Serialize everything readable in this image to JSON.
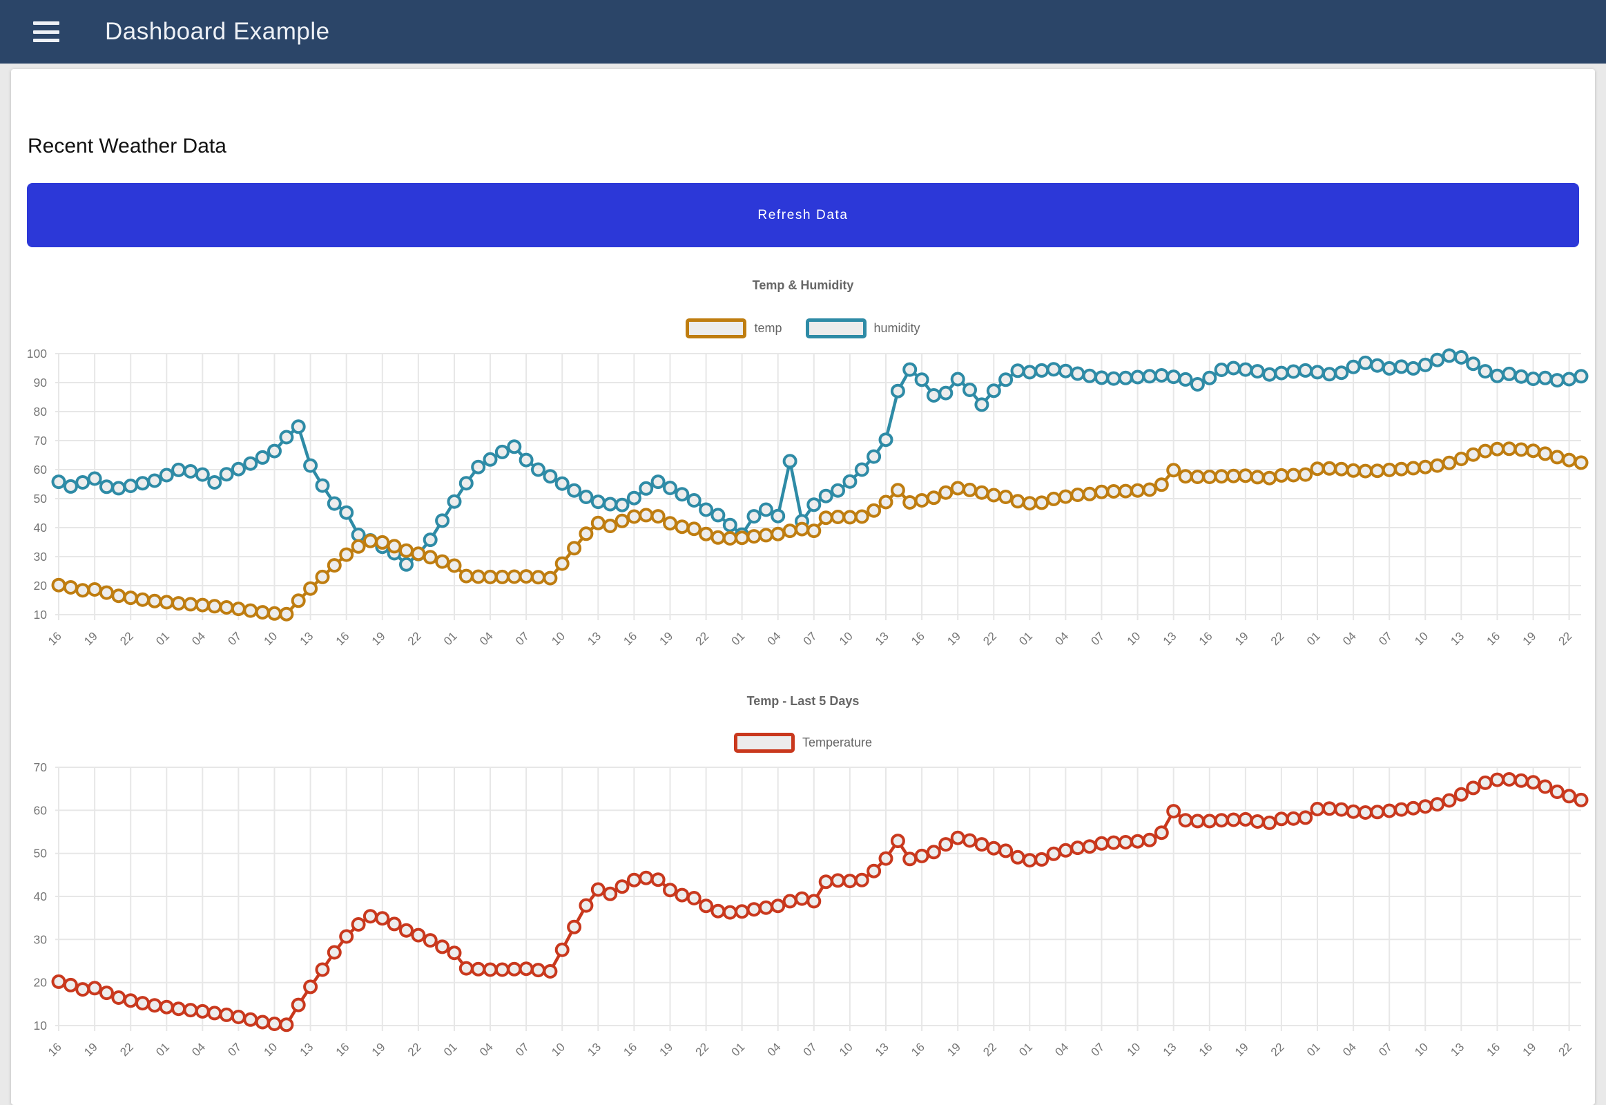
{
  "header": {
    "title": "Dashboard Example",
    "menu_icon": "hamburger-menu-icon"
  },
  "page": {
    "title": "Recent Weather Data"
  },
  "toolbar": {
    "refresh_label": "Refresh Data"
  },
  "colors": {
    "header_bg": "#2b4568",
    "button_bg": "#2c38d8",
    "temp": "#bf7d10",
    "humidity": "#2e8ba6",
    "temperature": "#c9381d",
    "grid": "#e7e7e7",
    "tick_text": "#757575"
  },
  "chart_data": [
    {
      "type": "line",
      "title": "Temp & Humidity",
      "xlabel": "",
      "ylabel": "",
      "ylim": [
        10,
        100
      ],
      "yticks": [
        100,
        90,
        80,
        70,
        60,
        50,
        40,
        30,
        20,
        10
      ],
      "grid": true,
      "legend_position": "top",
      "tick_labels": [
        "16",
        "19",
        "22",
        "01",
        "04",
        "07",
        "10",
        "13",
        "16",
        "19",
        "22",
        "01",
        "04",
        "07",
        "10",
        "13",
        "16",
        "19",
        "22",
        "01",
        "04",
        "07",
        "10",
        "13",
        "16",
        "19",
        "22",
        "01",
        "04",
        "07",
        "10",
        "13",
        "16",
        "19",
        "22",
        "01",
        "04",
        "07",
        "10",
        "13",
        "16",
        "19",
        "22"
      ],
      "series": [
        {
          "name": "temp",
          "color": "#bf7d10",
          "values": [
            20.2,
            19.4,
            18.4,
            18.7,
            17.6,
            16.5,
            15.8,
            15.2,
            14.7,
            14.3,
            13.9,
            13.6,
            13.3,
            12.9,
            12.5,
            12.0,
            11.4,
            10.8,
            10.4,
            10.2,
            14.8,
            19.0,
            23.0,
            27.0,
            30.7,
            33.5,
            35.4,
            34.9,
            33.6,
            32.1,
            31.0,
            29.8,
            28.3,
            26.9,
            23.3,
            23.1,
            23.0,
            23.0,
            23.1,
            23.2,
            22.9,
            22.6,
            27.6,
            32.9,
            37.9,
            41.6,
            40.6,
            42.3,
            43.8,
            44.3,
            43.9,
            41.5,
            40.3,
            39.6,
            37.8,
            36.6,
            36.3,
            36.5,
            37.0,
            37.4,
            37.8,
            38.9,
            39.5,
            38.9,
            43.4,
            43.7,
            43.6,
            43.8,
            45.9,
            48.8,
            52.9,
            48.7,
            49.4,
            50.3,
            52.1,
            53.6,
            53.0,
            52.1,
            51.2,
            50.6,
            49.1,
            48.4,
            48.6,
            49.9,
            50.7,
            51.3,
            51.6,
            52.3,
            52.5,
            52.6,
            52.8,
            53.1,
            54.8,
            59.8,
            57.7,
            57.5,
            57.5,
            57.7,
            57.8,
            57.9,
            57.4,
            57.1,
            58.0,
            58.1,
            58.3,
            60.3,
            60.4,
            60.2,
            59.7,
            59.5,
            59.6,
            59.9,
            60.2,
            60.5,
            60.9,
            61.4,
            62.3,
            63.7,
            65.2,
            66.4,
            67.1,
            67.2,
            66.9,
            66.5,
            65.5,
            64.3,
            63.3,
            62.4
          ]
        },
        {
          "name": "humidity",
          "color": "#2e8ba6",
          "values": [
            55.8,
            54.2,
            55.6,
            56.9,
            54.1,
            53.6,
            54.4,
            55.3,
            56.2,
            58.1,
            59.9,
            59.4,
            58.3,
            55.6,
            58.4,
            60.2,
            62.1,
            64.2,
            66.4,
            71.2,
            74.8,
            61.4,
            54.5,
            48.3,
            45.2,
            37.5,
            35.6,
            33.4,
            31.2,
            27.3,
            30.9,
            35.8,
            42.4,
            49.0,
            55.3,
            60.9,
            63.5,
            66.1,
            67.9,
            63.3,
            60.0,
            57.7,
            55.2,
            52.8,
            50.6,
            48.9,
            48.1,
            47.8,
            50.2,
            53.5,
            55.8,
            53.7,
            51.5,
            49.4,
            46.2,
            44.3,
            40.9,
            37.6,
            43.9,
            46.2,
            44.0,
            62.9,
            42.2,
            47.9,
            50.9,
            52.8,
            55.9,
            60.0,
            64.5,
            70.3,
            87.1,
            94.5,
            91.0,
            85.6,
            86.4,
            91.2,
            87.5,
            82.4,
            87.2,
            91.0,
            94.1,
            93.6,
            94.2,
            94.6,
            94.0,
            93.1,
            92.3,
            91.7,
            91.4,
            91.6,
            91.9,
            92.2,
            92.5,
            92.0,
            91.1,
            89.4,
            91.6,
            94.4,
            95.0,
            94.5,
            93.9,
            92.8,
            93.3,
            93.8,
            94.2,
            93.6,
            92.9,
            93.4,
            95.4,
            96.8,
            95.9,
            94.9,
            95.5,
            94.9,
            96.1,
            97.8,
            99.3,
            98.7,
            96.5,
            93.9,
            92.3,
            93.0,
            92.1,
            91.3,
            91.6,
            90.8,
            91.2,
            92.2
          ]
        }
      ]
    },
    {
      "type": "line",
      "title": "Temp - Last 5 Days",
      "xlabel": "",
      "ylabel": "",
      "ylim": [
        10,
        70
      ],
      "yticks": [
        70,
        60,
        50,
        40,
        30,
        20,
        10
      ],
      "grid": true,
      "legend_position": "top",
      "tick_labels": [
        "16",
        "19",
        "22",
        "01",
        "04",
        "07",
        "10",
        "13",
        "16",
        "19",
        "22",
        "01",
        "04",
        "07",
        "10",
        "13",
        "16",
        "19",
        "22",
        "01",
        "04",
        "07",
        "10",
        "13",
        "16",
        "19",
        "22",
        "01",
        "04",
        "07",
        "10",
        "13",
        "16",
        "19",
        "22",
        "01",
        "04",
        "07",
        "10",
        "13",
        "16",
        "19",
        "22"
      ],
      "series": [
        {
          "name": "Temperature",
          "color": "#c9381d",
          "values": [
            20.2,
            19.4,
            18.4,
            18.7,
            17.6,
            16.5,
            15.8,
            15.2,
            14.7,
            14.3,
            13.9,
            13.6,
            13.3,
            12.9,
            12.5,
            12.0,
            11.4,
            10.8,
            10.4,
            10.2,
            14.8,
            19.0,
            23.0,
            27.0,
            30.7,
            33.5,
            35.4,
            34.9,
            33.6,
            32.1,
            31.0,
            29.8,
            28.3,
            26.9,
            23.3,
            23.1,
            23.0,
            23.0,
            23.1,
            23.2,
            22.9,
            22.6,
            27.6,
            32.9,
            37.9,
            41.6,
            40.6,
            42.3,
            43.8,
            44.3,
            43.9,
            41.5,
            40.3,
            39.6,
            37.8,
            36.6,
            36.3,
            36.5,
            37.0,
            37.4,
            37.8,
            38.9,
            39.5,
            38.9,
            43.4,
            43.7,
            43.6,
            43.8,
            45.9,
            48.8,
            52.9,
            48.7,
            49.4,
            50.3,
            52.1,
            53.6,
            53.0,
            52.1,
            51.2,
            50.6,
            49.1,
            48.4,
            48.6,
            49.9,
            50.7,
            51.3,
            51.6,
            52.3,
            52.5,
            52.6,
            52.8,
            53.1,
            54.8,
            59.8,
            57.7,
            57.5,
            57.5,
            57.7,
            57.8,
            57.9,
            57.4,
            57.1,
            58.0,
            58.1,
            58.3,
            60.3,
            60.4,
            60.2,
            59.7,
            59.5,
            59.6,
            59.9,
            60.2,
            60.5,
            60.9,
            61.4,
            62.3,
            63.7,
            65.2,
            66.4,
            67.1,
            67.2,
            66.9,
            66.5,
            65.5,
            64.3,
            63.3,
            62.4
          ]
        }
      ]
    }
  ]
}
